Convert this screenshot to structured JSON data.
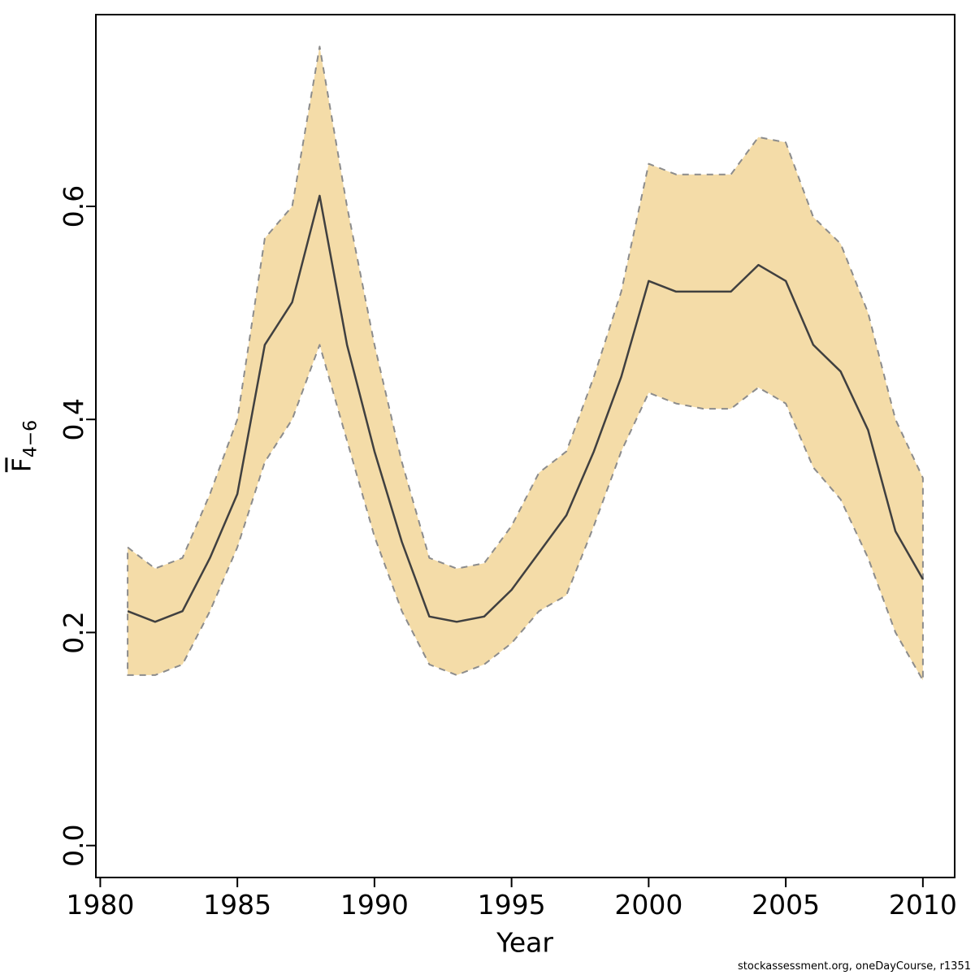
{
  "chart_data": {
    "type": "line",
    "title": "",
    "xlabel": "Year",
    "ylabel_main": "F",
    "ylabel_sub": "4−6",
    "x": [
      1981,
      1982,
      1983,
      1984,
      1985,
      1986,
      1987,
      1988,
      1989,
      1990,
      1991,
      1992,
      1993,
      1994,
      1995,
      1996,
      1997,
      1998,
      1999,
      2000,
      2001,
      2002,
      2003,
      2004,
      2005,
      2006,
      2007,
      2008,
      2009,
      2010
    ],
    "series": [
      {
        "name": "estimate",
        "values": [
          0.22,
          0.21,
          0.22,
          0.27,
          0.33,
          0.47,
          0.51,
          0.61,
          0.47,
          0.37,
          0.285,
          0.215,
          0.21,
          0.215,
          0.24,
          0.275,
          0.31,
          0.37,
          0.44,
          0.53,
          0.52,
          0.52,
          0.52,
          0.545,
          0.53,
          0.47,
          0.445,
          0.39,
          0.295,
          0.25
        ]
      },
      {
        "name": "upper_95",
        "values": [
          0.28,
          0.26,
          0.27,
          0.33,
          0.4,
          0.57,
          0.6,
          0.75,
          0.6,
          0.47,
          0.36,
          0.27,
          0.26,
          0.265,
          0.3,
          0.35,
          0.37,
          0.44,
          0.52,
          0.64,
          0.63,
          0.63,
          0.63,
          0.665,
          0.66,
          0.59,
          0.565,
          0.5,
          0.4,
          0.345
        ]
      },
      {
        "name": "lower_95",
        "values": [
          0.16,
          0.16,
          0.17,
          0.22,
          0.28,
          0.36,
          0.4,
          0.47,
          0.38,
          0.29,
          0.22,
          0.17,
          0.16,
          0.17,
          0.19,
          0.22,
          0.235,
          0.3,
          0.37,
          0.425,
          0.415,
          0.41,
          0.41,
          0.43,
          0.415,
          0.355,
          0.325,
          0.27,
          0.2,
          0.155
        ]
      }
    ],
    "x_ticks": [
      1980,
      1985,
      1990,
      1995,
      2000,
      2005,
      2010
    ],
    "y_ticks": [
      "0.0",
      "0.2",
      "0.4",
      "0.6"
    ],
    "xlim": [
      1979.84,
      2011.16
    ],
    "ylim": [
      -0.03,
      0.78
    ],
    "grid": false,
    "legend": "none",
    "colors": {
      "band_fill": "#f4dca8",
      "band_border": "#8c8c8c",
      "estimate_line": "#404040",
      "axis": "#000000"
    }
  },
  "footer": {
    "text": "stockassessment.org, oneDayCourse, r1351"
  }
}
